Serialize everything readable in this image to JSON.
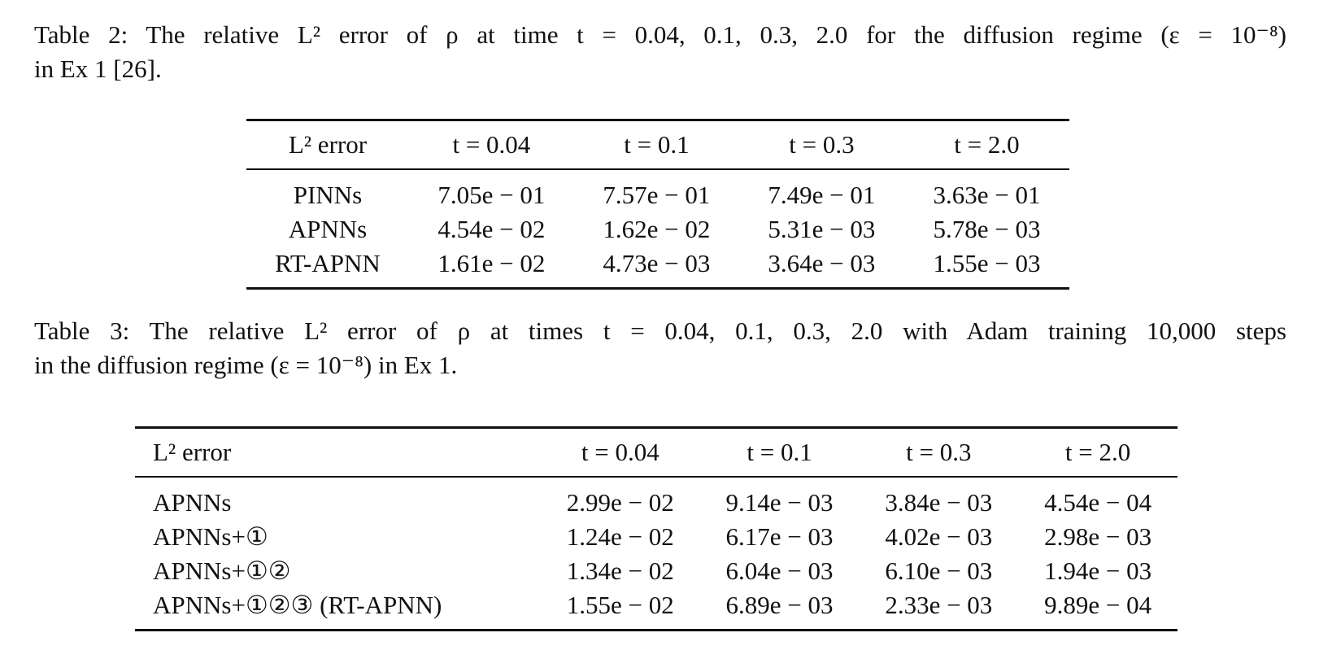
{
  "table2": {
    "caption_line1": "Table 2: The relative L² error of ρ at time t = 0.04, 0.1, 0.3, 2.0 for the diffusion regime (ε = 10⁻⁸)",
    "caption_line2": "in Ex 1 [26].",
    "headers": [
      "L² error",
      "t = 0.04",
      "t = 0.1",
      "t = 0.3",
      "t = 2.0"
    ],
    "rows": [
      {
        "method": "PINNs",
        "values": [
          "7.05e − 01",
          "7.57e − 01",
          "7.49e − 01",
          "3.63e − 01"
        ]
      },
      {
        "method": "APNNs",
        "values": [
          "4.54e − 02",
          "1.62e − 02",
          "5.31e − 03",
          "5.78e − 03"
        ]
      },
      {
        "method": "RT-APNN",
        "values": [
          "1.61e − 02",
          "4.73e − 03",
          "3.64e − 03",
          "1.55e − 03"
        ]
      }
    ]
  },
  "table3": {
    "caption_line1": "Table 3: The relative L² error of ρ at times t = 0.04, 0.1, 0.3, 2.0 with Adam training 10,000 steps",
    "caption_line2": "in the diffusion regime (ε = 10⁻⁸) in Ex 1.",
    "headers": [
      "L² error",
      "t = 0.04",
      "t = 0.1",
      "t = 0.3",
      "t = 2.0"
    ],
    "rows": [
      {
        "method": "APNNs",
        "values": [
          "2.99e − 02",
          "9.14e − 03",
          "3.84e − 03",
          "4.54e − 04"
        ]
      },
      {
        "method": "APNNs+①",
        "values": [
          "1.24e − 02",
          "6.17e − 03",
          "4.02e − 03",
          "2.98e − 03"
        ]
      },
      {
        "method": "APNNs+①②",
        "values": [
          "1.34e − 02",
          "6.04e − 03",
          "6.10e − 03",
          "1.94e − 03"
        ]
      },
      {
        "method": "APNNs+①②③ (RT-APNN)",
        "values": [
          "1.55e − 02",
          "6.89e − 03",
          "2.33e − 03",
          "9.89e − 04"
        ]
      }
    ]
  }
}
